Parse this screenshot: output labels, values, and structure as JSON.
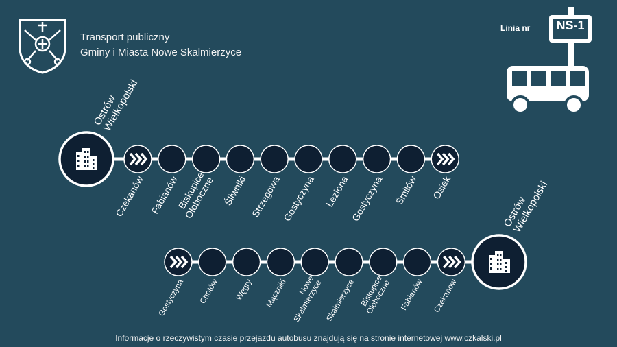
{
  "header": {
    "line1": "Transport publiczny",
    "line2": "Gminy i Miasta Nowe Skalmierzyce"
  },
  "line": {
    "label": "Linia nr",
    "number": "NS-1"
  },
  "route_top": {
    "terminal": [
      "Ostrów",
      "Wielkopolski"
    ],
    "stops": [
      [
        "Czekanów"
      ],
      [
        "Fabianów"
      ],
      [
        "Biskupice",
        "Ołoboczne"
      ],
      [
        "Śliwniki"
      ],
      [
        "Strzegowa"
      ],
      [
        "Gostyczyna"
      ],
      [
        "Leziona"
      ],
      [
        "Gostyczyna"
      ],
      [
        "Śmiłów"
      ],
      [
        "Osiek"
      ]
    ]
  },
  "route_bottom": {
    "terminal": [
      "Ostrów",
      "Wielkopolski"
    ],
    "stops": [
      [
        "Gostyczyna"
      ],
      [
        "Chotów"
      ],
      [
        "Węgry"
      ],
      [
        "Mączniki"
      ],
      [
        "Nowe",
        "Skalmierzyce"
      ],
      [
        "Skalmierzyce"
      ],
      [
        "Biskupice",
        "Ołoboczne"
      ],
      [
        "Fabianów"
      ],
      [
        "Czekanów"
      ]
    ]
  },
  "footer": {
    "text": "Informacje o rzeczywistym czasie przejazdu autobusu znajdują się na stronie internetowej  www.czkalski.pl"
  },
  "colors": {
    "background": "#234a5c",
    "node": "#0e1f32",
    "line": "#ffffff"
  }
}
